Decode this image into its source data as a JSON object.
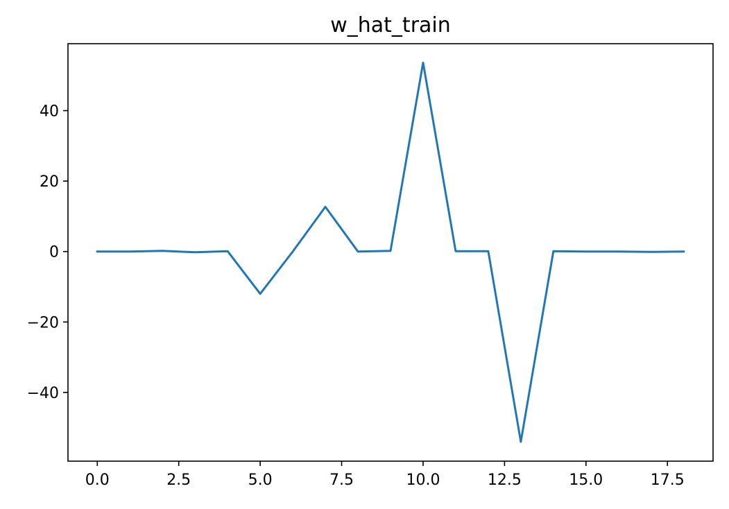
{
  "chart_data": {
    "type": "line",
    "title": "w_hat_train",
    "xlabel": "",
    "ylabel": "",
    "xlim": [
      -0.9,
      18.9
    ],
    "ylim": [
      -59.5,
      59.0
    ],
    "xticks": [
      0.0,
      2.5,
      5.0,
      7.5,
      10.0,
      12.5,
      15.0,
      17.5
    ],
    "xtick_labels": [
      "0.0",
      "2.5",
      "5.0",
      "7.5",
      "10.0",
      "12.5",
      "15.0",
      "17.5"
    ],
    "yticks": [
      -40,
      -20,
      0,
      20,
      40
    ],
    "ytick_labels": [
      "−40",
      "−20",
      "0",
      "20",
      "40"
    ],
    "grid": false,
    "legend": "none",
    "series": [
      {
        "color": "#1f77b4",
        "x": [
          0,
          1,
          2,
          3,
          4,
          5,
          6,
          7,
          8,
          9,
          10,
          11,
          12,
          13,
          14,
          15,
          16,
          17,
          18
        ],
        "values": [
          0.0,
          0.0,
          0.2,
          -0.2,
          0.1,
          -12.0,
          0.0,
          12.7,
          0.0,
          0.2,
          53.6,
          0.1,
          0.1,
          -54.0,
          0.1,
          0.0,
          0.0,
          -0.1,
          0.0
        ]
      }
    ]
  }
}
